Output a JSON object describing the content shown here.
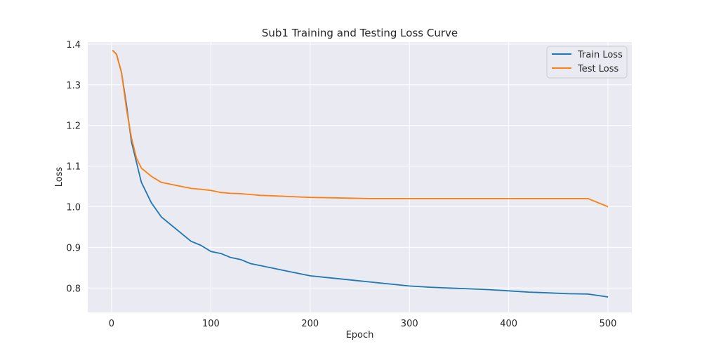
{
  "chart_data": {
    "type": "line",
    "title": "Sub1 Training and Testing Loss Curve",
    "xlabel": "Epoch",
    "ylabel": "Loss",
    "xlim": [
      -24,
      524
    ],
    "ylim": [
      0.74,
      1.405
    ],
    "xticks": [
      0,
      100,
      200,
      300,
      400,
      500
    ],
    "xtick_labels": [
      "0",
      "100",
      "200",
      "300",
      "400",
      "500"
    ],
    "yticks": [
      0.8,
      0.9,
      1.0,
      1.1,
      1.2,
      1.3,
      1.4
    ],
    "ytick_labels": [
      "0.8",
      "0.9",
      "1.0",
      "1.1",
      "1.2",
      "1.3",
      "1.4"
    ],
    "grid": true,
    "legend_position": "top-right",
    "background": "#eaeaf2",
    "x": [
      1,
      5,
      10,
      15,
      20,
      25,
      30,
      40,
      50,
      60,
      70,
      80,
      90,
      100,
      110,
      120,
      130,
      140,
      150,
      160,
      170,
      180,
      190,
      200,
      220,
      240,
      260,
      280,
      300,
      320,
      340,
      360,
      380,
      400,
      420,
      440,
      460,
      480,
      500
    ],
    "series": [
      {
        "name": "Train Loss",
        "color": "#1f77b4",
        "values": [
          1.385,
          1.375,
          1.33,
          1.25,
          1.16,
          1.11,
          1.06,
          1.01,
          0.975,
          0.955,
          0.935,
          0.915,
          0.905,
          0.89,
          0.885,
          0.875,
          0.87,
          0.86,
          0.855,
          0.85,
          0.845,
          0.84,
          0.835,
          0.83,
          0.825,
          0.82,
          0.815,
          0.81,
          0.805,
          0.802,
          0.8,
          0.798,
          0.796,
          0.793,
          0.79,
          0.788,
          0.786,
          0.785,
          0.778
        ]
      },
      {
        "name": "Test Loss",
        "color": "#ff7f0e",
        "values": [
          1.385,
          1.375,
          1.33,
          1.24,
          1.17,
          1.12,
          1.095,
          1.075,
          1.06,
          1.055,
          1.05,
          1.045,
          1.043,
          1.04,
          1.035,
          1.033,
          1.032,
          1.03,
          1.028,
          1.027,
          1.026,
          1.025,
          1.024,
          1.023,
          1.022,
          1.021,
          1.02,
          1.02,
          1.02,
          1.02,
          1.02,
          1.02,
          1.02,
          1.02,
          1.02,
          1.02,
          1.02,
          1.02,
          1.0
        ]
      }
    ]
  }
}
